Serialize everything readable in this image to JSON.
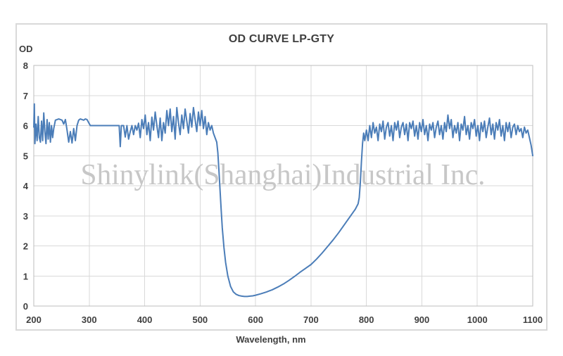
{
  "chart": {
    "title": "OD CURVE LP-GTY",
    "y_axis_label": "OD",
    "x_axis_label": "Wavelength, nm",
    "watermark": "Shinylink(Shanghai)Industrial Inc.",
    "colors": {
      "curve": "#4b7db8",
      "grid": "#d9d9d9",
      "plot_border": "#bdbdbd",
      "frame_border": "#d9d9d9",
      "text": "#404040",
      "watermark": "#c7c7c7",
      "background": "#ffffff"
    }
  },
  "chart_data": {
    "type": "line",
    "title": "OD CURVE LP-GTY",
    "xlabel": "Wavelength, nm",
    "ylabel": "OD",
    "xlim": [
      200,
      1100
    ],
    "ylim": [
      0,
      8
    ],
    "x_ticks": [
      200,
      300,
      400,
      500,
      600,
      700,
      800,
      900,
      1000,
      1100
    ],
    "y_ticks": [
      0,
      1,
      2,
      3,
      4,
      5,
      6,
      7,
      8
    ],
    "grid": true,
    "legend": false,
    "description": "Longpass filter optical density: blocking OD ~6 (noisy) from 200-530 nm, transmission window (OD ~0.32 minimum near 580 nm) from ~545-790 nm rising gradually, then blocking OD ~6 (noisy) from 800-1100 nm",
    "series": [
      {
        "name": "OD",
        "color": "#4b7db8",
        "points": [
          [
            200,
            5.95
          ],
          [
            201,
            6.72
          ],
          [
            202,
            5.4
          ],
          [
            204,
            6.05
          ],
          [
            206,
            5.5
          ],
          [
            208,
            6.3
          ],
          [
            210,
            5.6
          ],
          [
            212,
            5.45
          ],
          [
            214,
            6.15
          ],
          [
            216,
            5.5
          ],
          [
            218,
            6.42
          ],
          [
            220,
            5.8
          ],
          [
            222,
            5.4
          ],
          [
            224,
            6.2
          ],
          [
            226,
            5.55
          ],
          [
            228,
            6.1
          ],
          [
            230,
            5.45
          ],
          [
            232,
            6.0
          ],
          [
            234,
            5.6
          ],
          [
            236,
            5.9
          ],
          [
            239,
            6.18
          ],
          [
            242,
            6.2
          ],
          [
            245,
            6.22
          ],
          [
            248,
            6.2
          ],
          [
            251,
            6.18
          ],
          [
            254,
            6.05
          ],
          [
            257,
            6.2
          ],
          [
            260,
            5.85
          ],
          [
            263,
            5.45
          ],
          [
            266,
            5.8
          ],
          [
            269,
            5.42
          ],
          [
            272,
            5.9
          ],
          [
            275,
            5.5
          ],
          [
            278,
            6.0
          ],
          [
            281,
            6.18
          ],
          [
            284,
            6.22
          ],
          [
            287,
            6.2
          ],
          [
            290,
            6.18
          ],
          [
            293,
            6.22
          ],
          [
            296,
            6.2
          ],
          [
            299,
            6.1
          ],
          [
            302,
            6.0
          ],
          [
            306,
            6.0
          ],
          [
            310,
            6.0
          ],
          [
            314,
            6.0
          ],
          [
            318,
            6.0
          ],
          [
            322,
            6.0
          ],
          [
            326,
            6.0
          ],
          [
            330,
            6.0
          ],
          [
            334,
            6.0
          ],
          [
            338,
            6.0
          ],
          [
            342,
            6.0
          ],
          [
            346,
            6.0
          ],
          [
            350,
            6.0
          ],
          [
            354,
            6.0
          ],
          [
            356,
            5.3
          ],
          [
            358,
            6.0
          ],
          [
            362,
            6.0
          ],
          [
            365,
            5.62
          ],
          [
            368,
            6.0
          ],
          [
            371,
            5.55
          ],
          [
            374,
            5.8
          ],
          [
            377,
            6.0
          ],
          [
            380,
            5.7
          ],
          [
            383,
            6.0
          ],
          [
            386,
            5.85
          ],
          [
            389,
            6.08
          ],
          [
            392,
            5.6
          ],
          [
            395,
            6.2
          ],
          [
            398,
            5.9
          ],
          [
            401,
            6.35
          ],
          [
            404,
            5.7
          ],
          [
            407,
            6.1
          ],
          [
            410,
            5.5
          ],
          [
            413,
            6.28
          ],
          [
            416,
            5.85
          ],
          [
            419,
            6.45
          ],
          [
            422,
            6.0
          ],
          [
            425,
            5.6
          ],
          [
            428,
            6.25
          ],
          [
            431,
            5.5
          ],
          [
            434,
            6.1
          ],
          [
            437,
            5.75
          ],
          [
            440,
            6.5
          ],
          [
            443,
            6.0
          ],
          [
            446,
            6.55
          ],
          [
            449,
            5.8
          ],
          [
            452,
            6.3
          ],
          [
            455,
            5.55
          ],
          [
            458,
            6.6
          ],
          [
            461,
            6.1
          ],
          [
            464,
            5.7
          ],
          [
            467,
            6.35
          ],
          [
            470,
            5.9
          ],
          [
            473,
            6.55
          ],
          [
            476,
            6.15
          ],
          [
            479,
            5.75
          ],
          [
            482,
            6.4
          ],
          [
            485,
            5.95
          ],
          [
            488,
            6.6
          ],
          [
            491,
            6.2
          ],
          [
            494,
            5.8
          ],
          [
            497,
            6.45
          ],
          [
            500,
            6.0
          ],
          [
            503,
            6.5
          ],
          [
            506,
            5.9
          ],
          [
            509,
            6.3
          ],
          [
            512,
            5.7
          ],
          [
            515,
            6.1
          ],
          [
            518,
            5.85
          ],
          [
            521,
            6.0
          ],
          [
            524,
            5.75
          ],
          [
            527,
            5.6
          ],
          [
            530,
            5.45
          ],
          [
            532,
            5.1
          ],
          [
            534,
            4.5
          ],
          [
            536,
            3.85
          ],
          [
            538,
            3.2
          ],
          [
            540,
            2.6
          ],
          [
            543,
            1.95
          ],
          [
            546,
            1.45
          ],
          [
            550,
            1.0
          ],
          [
            555,
            0.65
          ],
          [
            560,
            0.47
          ],
          [
            565,
            0.39
          ],
          [
            570,
            0.35
          ],
          [
            575,
            0.33
          ],
          [
            580,
            0.32
          ],
          [
            585,
            0.32
          ],
          [
            590,
            0.33
          ],
          [
            595,
            0.34
          ],
          [
            600,
            0.36
          ],
          [
            610,
            0.41
          ],
          [
            620,
            0.47
          ],
          [
            630,
            0.54
          ],
          [
            640,
            0.63
          ],
          [
            650,
            0.73
          ],
          [
            660,
            0.85
          ],
          [
            670,
            0.98
          ],
          [
            680,
            1.12
          ],
          [
            690,
            1.25
          ],
          [
            700,
            1.38
          ],
          [
            710,
            1.56
          ],
          [
            720,
            1.76
          ],
          [
            730,
            1.98
          ],
          [
            740,
            2.2
          ],
          [
            750,
            2.44
          ],
          [
            760,
            2.7
          ],
          [
            770,
            2.96
          ],
          [
            780,
            3.22
          ],
          [
            785,
            3.4
          ],
          [
            787,
            3.6
          ],
          [
            789,
            4.1
          ],
          [
            791,
            4.8
          ],
          [
            793,
            5.4
          ],
          [
            795,
            5.75
          ],
          [
            797,
            5.5
          ],
          [
            800,
            5.85
          ],
          [
            803,
            5.5
          ],
          [
            806,
            6.0
          ],
          [
            809,
            5.6
          ],
          [
            812,
            6.1
          ],
          [
            815,
            5.75
          ],
          [
            818,
            5.95
          ],
          [
            821,
            5.5
          ],
          [
            824,
            6.05
          ],
          [
            827,
            5.8
          ],
          [
            830,
            6.15
          ],
          [
            833,
            5.55
          ],
          [
            836,
            5.95
          ],
          [
            839,
            6.1
          ],
          [
            842,
            5.65
          ],
          [
            845,
            6.0
          ],
          [
            848,
            5.5
          ],
          [
            851,
            6.1
          ],
          [
            854,
            5.85
          ],
          [
            857,
            6.15
          ],
          [
            860,
            5.6
          ],
          [
            863,
            5.95
          ],
          [
            866,
            6.1
          ],
          [
            869,
            5.7
          ],
          [
            872,
            6.05
          ],
          [
            875,
            5.5
          ],
          [
            878,
            6.1
          ],
          [
            881,
            5.9
          ],
          [
            884,
            6.15
          ],
          [
            887,
            5.65
          ],
          [
            890,
            6.0
          ],
          [
            893,
            5.55
          ],
          [
            896,
            6.1
          ],
          [
            899,
            5.8
          ],
          [
            902,
            6.2
          ],
          [
            905,
            5.7
          ],
          [
            908,
            6.0
          ],
          [
            911,
            5.5
          ],
          [
            914,
            6.05
          ],
          [
            917,
            5.85
          ],
          [
            920,
            6.1
          ],
          [
            923,
            5.6
          ],
          [
            926,
            5.95
          ],
          [
            929,
            6.15
          ],
          [
            932,
            5.7
          ],
          [
            935,
            6.0
          ],
          [
            938,
            5.55
          ],
          [
            941,
            6.1
          ],
          [
            944,
            5.8
          ],
          [
            947,
            6.35
          ],
          [
            950,
            5.9
          ],
          [
            953,
            6.2
          ],
          [
            956,
            5.6
          ],
          [
            959,
            6.0
          ],
          [
            962,
            5.75
          ],
          [
            965,
            6.1
          ],
          [
            968,
            5.5
          ],
          [
            971,
            6.05
          ],
          [
            974,
            5.85
          ],
          [
            977,
            6.3
          ],
          [
            980,
            5.7
          ],
          [
            983,
            6.0
          ],
          [
            986,
            5.55
          ],
          [
            989,
            6.1
          ],
          [
            992,
            5.9
          ],
          [
            995,
            6.2
          ],
          [
            998,
            5.65
          ],
          [
            1001,
            6.0
          ],
          [
            1004,
            5.5
          ],
          [
            1007,
            6.1
          ],
          [
            1010,
            5.8
          ],
          [
            1013,
            6.15
          ],
          [
            1016,
            5.6
          ],
          [
            1019,
            5.95
          ],
          [
            1022,
            6.25
          ],
          [
            1025,
            5.7
          ],
          [
            1028,
            6.05
          ],
          [
            1031,
            5.55
          ],
          [
            1034,
            6.1
          ],
          [
            1037,
            5.85
          ],
          [
            1040,
            6.2
          ],
          [
            1043,
            5.65
          ],
          [
            1046,
            6.0
          ],
          [
            1049,
            5.5
          ],
          [
            1052,
            6.1
          ],
          [
            1055,
            5.8
          ],
          [
            1058,
            6.1
          ],
          [
            1061,
            5.6
          ],
          [
            1064,
            5.95
          ],
          [
            1067,
            6.05
          ],
          [
            1070,
            5.7
          ],
          [
            1073,
            6.0
          ],
          [
            1076,
            5.8
          ],
          [
            1079,
            5.9
          ],
          [
            1082,
            5.6
          ],
          [
            1085,
            5.95
          ],
          [
            1088,
            5.75
          ],
          [
            1091,
            5.85
          ],
          [
            1094,
            5.6
          ],
          [
            1097,
            5.35
          ],
          [
            1100,
            5.0
          ]
        ]
      }
    ]
  }
}
